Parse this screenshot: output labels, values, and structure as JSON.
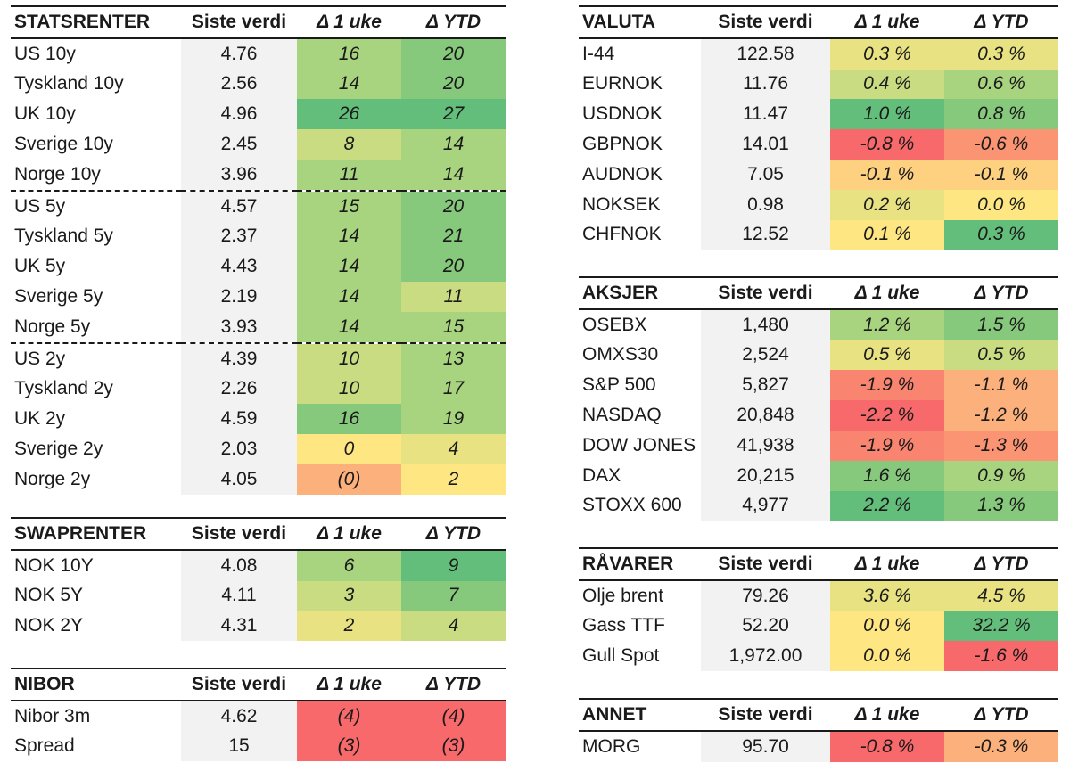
{
  "headers": {
    "value": "Siste verdi",
    "week": "Δ 1 uke",
    "ytd": "Δ YTD"
  },
  "colors": {
    "dark_green": "#63be7b",
    "mid_green": "#87c97c",
    "light_green": "#a8d37f",
    "yellow_green": "#c9dc81",
    "pale_yellow": "#e8e282",
    "yellow": "#fee783",
    "light_orange": "#fdd17f",
    "orange": "#fcb07b",
    "dark_orange": "#fa9473",
    "salmon": "#f98570",
    "red": "#f8696b",
    "value_bg": "#f2f2f2"
  },
  "tables": [
    {
      "id": "statsrenter",
      "title": "STATSRENTER",
      "rows": [
        {
          "name": "US 10y",
          "value": "4.76",
          "week": "16",
          "week_color": "#a8d37f",
          "ytd": "20",
          "ytd_color": "#87c97c"
        },
        {
          "name": "Tyskland 10y",
          "value": "2.56",
          "week": "14",
          "week_color": "#a8d37f",
          "ytd": "20",
          "ytd_color": "#87c97c"
        },
        {
          "name": "UK 10y",
          "value": "4.96",
          "week": "26",
          "week_color": "#63be7b",
          "ytd": "27",
          "ytd_color": "#63be7b"
        },
        {
          "name": "Sverige 10y",
          "value": "2.45",
          "week": "8",
          "week_color": "#c9dc81",
          "ytd": "14",
          "ytd_color": "#a8d37f"
        },
        {
          "name": "Norge 10y",
          "value": "3.96",
          "week": "11",
          "week_color": "#a8d37f",
          "ytd": "14",
          "ytd_color": "#a8d37f"
        },
        {
          "name": "US 5y",
          "value": "4.57",
          "week": "15",
          "week_color": "#a8d37f",
          "ytd": "20",
          "ytd_color": "#87c97c",
          "sep": true
        },
        {
          "name": "Tyskland 5y",
          "value": "2.37",
          "week": "14",
          "week_color": "#a8d37f",
          "ytd": "21",
          "ytd_color": "#87c97c"
        },
        {
          "name": "UK 5y",
          "value": "4.43",
          "week": "14",
          "week_color": "#a8d37f",
          "ytd": "20",
          "ytd_color": "#87c97c"
        },
        {
          "name": "Sverige 5y",
          "value": "2.19",
          "week": "14",
          "week_color": "#a8d37f",
          "ytd": "11",
          "ytd_color": "#c9dc81"
        },
        {
          "name": "Norge 5y",
          "value": "3.93",
          "week": "14",
          "week_color": "#a8d37f",
          "ytd": "15",
          "ytd_color": "#a8d37f"
        },
        {
          "name": "US 2y",
          "value": "4.39",
          "week": "10",
          "week_color": "#c9dc81",
          "ytd": "13",
          "ytd_color": "#a8d37f",
          "sep": true
        },
        {
          "name": "Tyskland 2y",
          "value": "2.26",
          "week": "10",
          "week_color": "#c9dc81",
          "ytd": "17",
          "ytd_color": "#a8d37f"
        },
        {
          "name": "UK 2y",
          "value": "4.59",
          "week": "16",
          "week_color": "#87c97c",
          "ytd": "19",
          "ytd_color": "#a8d37f"
        },
        {
          "name": "Sverige 2y",
          "value": "2.03",
          "week": "0",
          "week_color": "#fee783",
          "ytd": "4",
          "ytd_color": "#e8e282"
        },
        {
          "name": "Norge 2y",
          "value": "4.05",
          "week": "(0)",
          "week_color": "#fcb07b",
          "ytd": "2",
          "ytd_color": "#fee783"
        }
      ]
    },
    {
      "id": "swaprenter",
      "title": "SWAPRENTER",
      "rows": [
        {
          "name": "NOK 10Y",
          "value": "4.08",
          "week": "6",
          "week_color": "#a8d37f",
          "ytd": "9",
          "ytd_color": "#63be7b"
        },
        {
          "name": "NOK 5Y",
          "value": "4.11",
          "week": "3",
          "week_color": "#c9dc81",
          "ytd": "7",
          "ytd_color": "#87c97c"
        },
        {
          "name": "NOK 2Y",
          "value": "4.31",
          "week": "2",
          "week_color": "#e8e282",
          "ytd": "4",
          "ytd_color": "#c9dc81"
        }
      ]
    },
    {
      "id": "nibor",
      "title": "NIBOR",
      "rows": [
        {
          "name": "Nibor 3m",
          "value": "4.62",
          "week": "(4)",
          "week_color": "#f8696b",
          "ytd": "(4)",
          "ytd_color": "#f8696b"
        },
        {
          "name": "Spread",
          "value": "15",
          "week": "(3)",
          "week_color": "#f8696b",
          "ytd": "(3)",
          "ytd_color": "#f8696b"
        }
      ]
    },
    {
      "id": "valuta",
      "title": "VALUTA",
      "rows": [
        {
          "name": "I-44",
          "value": "122.58",
          "week": "0.3 %",
          "week_color": "#e8e282",
          "ytd": "0.3 %",
          "ytd_color": "#e8e282"
        },
        {
          "name": "EURNOK",
          "value": "11.76",
          "week": "0.4 %",
          "week_color": "#c9dc81",
          "ytd": "0.6 %",
          "ytd_color": "#a8d37f"
        },
        {
          "name": "USDNOK",
          "value": "11.47",
          "week": "1.0 %",
          "week_color": "#63be7b",
          "ytd": "0.8 %",
          "ytd_color": "#87c97c"
        },
        {
          "name": "GBPNOK",
          "value": "14.01",
          "week": "-0.8 %",
          "week_color": "#f8696b",
          "ytd": "-0.6 %",
          "ytd_color": "#fa9473"
        },
        {
          "name": "AUDNOK",
          "value": "7.05",
          "week": "-0.1 %",
          "week_color": "#fdd17f",
          "ytd": "-0.1 %",
          "ytd_color": "#fdd17f"
        },
        {
          "name": "NOKSEK",
          "value": "0.98",
          "week": "0.2 %",
          "week_color": "#e8e282",
          "ytd": "0.0 %",
          "ytd_color": "#fee783"
        },
        {
          "name": "CHFNOK",
          "value": "12.52",
          "week": "0.1 %",
          "week_color": "#fee783",
          "ytd": "0.3 %",
          "ytd_color": "#63be7b"
        }
      ]
    },
    {
      "id": "aksjer",
      "title": "AKSJER",
      "rows": [
        {
          "name": "OSEBX",
          "value": "1,480",
          "week": "1.2 %",
          "week_color": "#a8d37f",
          "ytd": "1.5 %",
          "ytd_color": "#87c97c"
        },
        {
          "name": "OMXS30",
          "value": "2,524",
          "week": "0.5 %",
          "week_color": "#e8e282",
          "ytd": "0.5 %",
          "ytd_color": "#c9dc81"
        },
        {
          "name": "S&P 500",
          "value": "5,827",
          "week": "-1.9 %",
          "week_color": "#f98570",
          "ytd": "-1.1 %",
          "ytd_color": "#fcb07b"
        },
        {
          "name": "NASDAQ",
          "value": "20,848",
          "week": "-2.2 %",
          "week_color": "#f8696b",
          "ytd": "-1.2 %",
          "ytd_color": "#fcb07b"
        },
        {
          "name": "DOW JONES",
          "value": "41,938",
          "week": "-1.9 %",
          "week_color": "#f98570",
          "ytd": "-1.3 %",
          "ytd_color": "#fa9473"
        },
        {
          "name": "DAX",
          "value": "20,215",
          "week": "1.6 %",
          "week_color": "#87c97c",
          "ytd": "0.9 %",
          "ytd_color": "#a8d37f"
        },
        {
          "name": "STOXX 600",
          "value": "4,977",
          "week": "2.2 %",
          "week_color": "#63be7b",
          "ytd": "1.3 %",
          "ytd_color": "#87c97c"
        }
      ]
    },
    {
      "id": "ravarer",
      "title": "RÅVARER",
      "rows": [
        {
          "name": "Olje brent",
          "value": "79.26",
          "week": "3.6 %",
          "week_color": "#e8e282",
          "ytd": "4.5 %",
          "ytd_color": "#e8e282"
        },
        {
          "name": "Gass TTF",
          "value": "52.20",
          "week": "0.0 %",
          "week_color": "#fee783",
          "ytd": "32.2 %",
          "ytd_color": "#63be7b"
        },
        {
          "name": "Gull Spot",
          "value": "1,972.00",
          "week": "0.0 %",
          "week_color": "#fee783",
          "ytd": "-1.6 %",
          "ytd_color": "#f8696b"
        }
      ]
    },
    {
      "id": "annet",
      "title": "ANNET",
      "rows": [
        {
          "name": "MORG",
          "value": "95.70",
          "week": "-0.8 %",
          "week_color": "#f8696b",
          "ytd": "-0.3 %",
          "ytd_color": "#fcb07b"
        }
      ]
    }
  ]
}
